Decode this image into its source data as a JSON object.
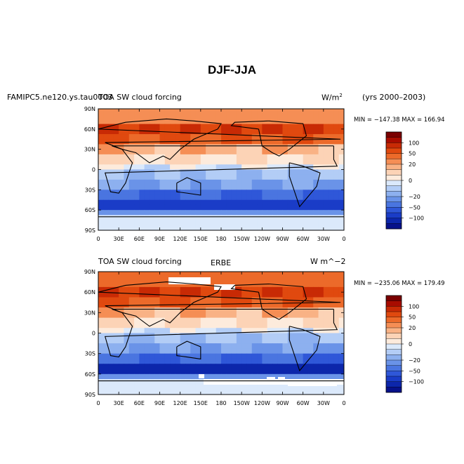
{
  "figure": {
    "title": "DJF-JJA"
  },
  "chart_data": [
    {
      "type": "heatmap",
      "title_left": "FAMIPC5.ne120.ys.tau0003",
      "title_center": "TOA SW cloud forcing",
      "units": "W/m",
      "units_sup": "2",
      "years": "(yrs 2000–2003)",
      "min_max": "MIN = −147.38  MAX = 166.94",
      "min": -147.38,
      "max": 166.94,
      "xlim": [
        0,
        360
      ],
      "ylim": [
        -90,
        90
      ],
      "x_ticks": [
        "0",
        "30E",
        "60E",
        "90E",
        "120E",
        "150E",
        "180",
        "150W",
        "120W",
        "90W",
        "60W",
        "30W",
        "0"
      ],
      "y_ticks": [
        "90N",
        "60N",
        "30N",
        "0",
        "30S",
        "60S",
        "90S"
      ],
      "colorbar_labels": [
        "100",
        "50",
        "20",
        "0",
        "−20",
        "−50",
        "−100"
      ]
    },
    {
      "type": "heatmap",
      "title_left": "TOA SW cloud forcing",
      "title_center": "ERBE",
      "units": "W m^−2",
      "min_max": "MIN = −235.06  MAX = 179.49",
      "min": -235.06,
      "max": 179.49,
      "xlim": [
        0,
        360
      ],
      "ylim": [
        -90,
        90
      ],
      "x_ticks": [
        "0",
        "30E",
        "60E",
        "90E",
        "120E",
        "150E",
        "180",
        "150W",
        "120W",
        "90W",
        "60W",
        "30W",
        "0"
      ],
      "y_ticks": [
        "90N",
        "60N",
        "30N",
        "0",
        "30S",
        "60S",
        "90S"
      ],
      "colorbar_labels": [
        "100",
        "50",
        "20",
        "0",
        "−20",
        "−50",
        "−100"
      ]
    }
  ],
  "colors": {
    "levels": [
      "#7a0000",
      "#a80c00",
      "#c82a05",
      "#e0490f",
      "#ec6a2a",
      "#f58e55",
      "#f9b285",
      "#fcd3b6",
      "#fdebdc",
      "#dbe9fb",
      "#b3cdf6",
      "#8db0ef",
      "#6a93e8",
      "#4a75e0",
      "#2f57d8",
      "#1a3cc7",
      "#0c26ab",
      "#06118a"
    ]
  }
}
